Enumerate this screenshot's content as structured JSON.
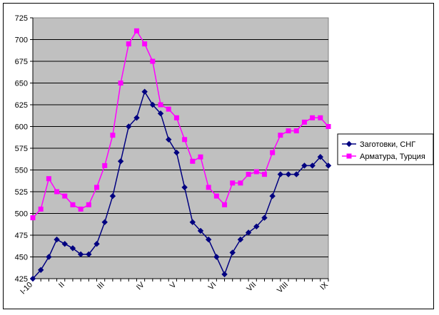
{
  "chart_data": {
    "type": "line",
    "title": "",
    "xlabel": "",
    "ylabel": "",
    "ylim": [
      425,
      725
    ],
    "yticks": [
      425,
      450,
      475,
      500,
      525,
      550,
      575,
      600,
      625,
      650,
      675,
      700,
      725
    ],
    "grid": "horizontal",
    "plot_background": "#C0C0C0",
    "legend_position": "right",
    "x_tick_labels": [
      {
        "label": "I-10",
        "index": 0
      },
      {
        "label": "II",
        "index": 4
      },
      {
        "label": "III",
        "index": 9
      },
      {
        "label": "IV",
        "index": 14
      },
      {
        "label": "V",
        "index": 18
      },
      {
        "label": "VI",
        "index": 23
      },
      {
        "label": "VII",
        "index": 28
      },
      {
        "label": "VIII",
        "index": 32
      },
      {
        "label": "IX",
        "index": 37
      }
    ],
    "series": [
      {
        "name": "Заготовки, СНГ",
        "color": "#000080",
        "marker": "diamond",
        "values": [
          425,
          435,
          450,
          470,
          465,
          460,
          453,
          453,
          465,
          490,
          520,
          560,
          600,
          610,
          640,
          625,
          615,
          585,
          570,
          530,
          490,
          480,
          470,
          450,
          430,
          455,
          470,
          478,
          485,
          495,
          520,
          545,
          545,
          545,
          555,
          555,
          565,
          555
        ]
      },
      {
        "name": "Арматура, Турция",
        "color": "#FF00FF",
        "marker": "square",
        "values": [
          495,
          505,
          540,
          525,
          520,
          510,
          505,
          510,
          530,
          555,
          590,
          650,
          695,
          710,
          695,
          675,
          625,
          620,
          610,
          585,
          560,
          565,
          530,
          520,
          510,
          535,
          535,
          545,
          548,
          545,
          570,
          590,
          595,
          595,
          605,
          610,
          610,
          600
        ]
      }
    ]
  }
}
